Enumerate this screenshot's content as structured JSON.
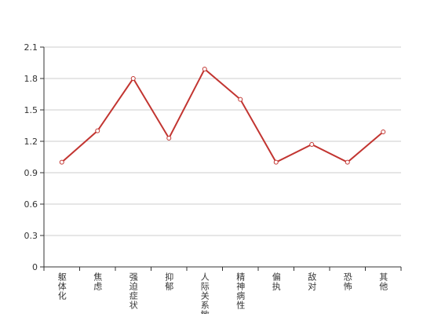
{
  "chart_data": {
    "type": "line",
    "categories": [
      "躯体化",
      "焦虑",
      "强迫症状",
      "抑郁",
      "人际关系敏感",
      "精神病性",
      "偏执",
      "敌对",
      "恐怖",
      "其他"
    ],
    "values": [
      1.0,
      1.3,
      1.8,
      1.23,
      1.89,
      1.6,
      1.0,
      1.17,
      1.0,
      1.29
    ],
    "color": "#c23531",
    "ylim": [
      0,
      2.1
    ],
    "yticks": [
      0,
      0.3,
      0.6,
      0.9,
      1.2,
      1.5,
      1.8,
      2.1
    ],
    "grid": true
  }
}
